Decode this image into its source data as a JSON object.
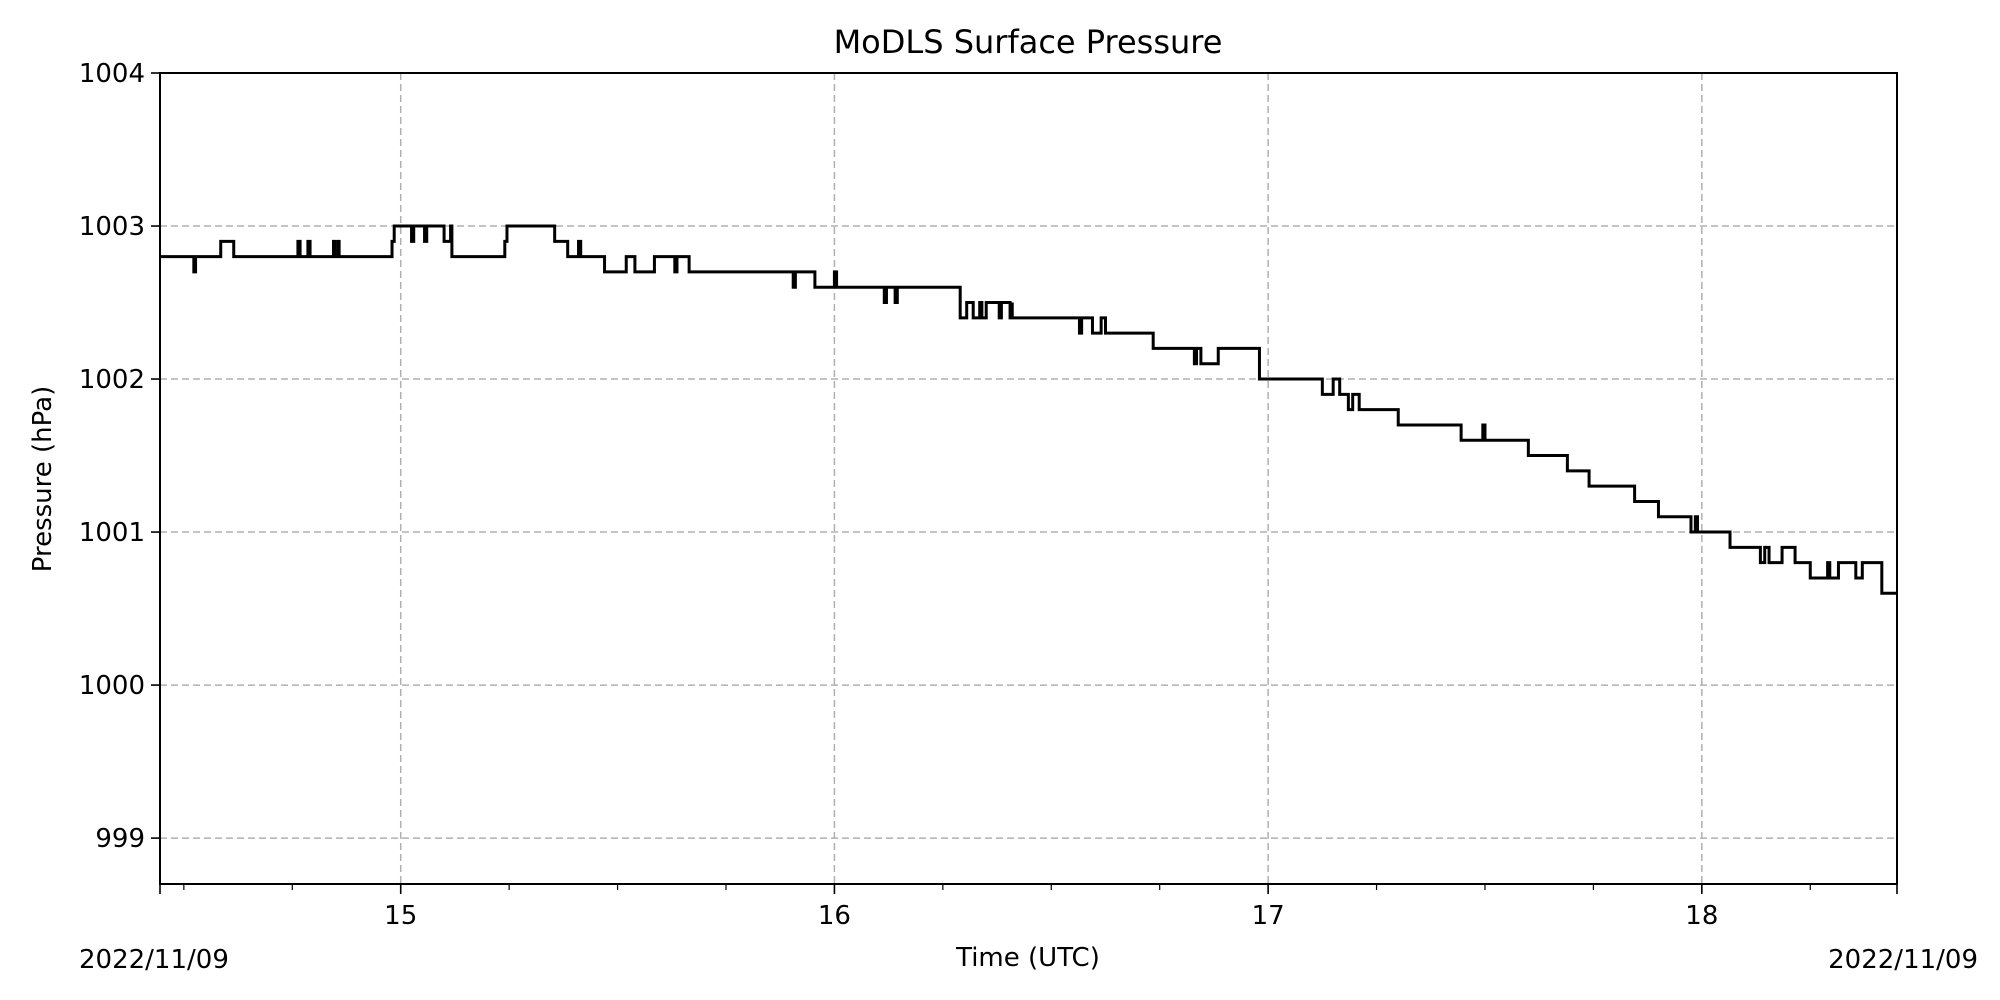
{
  "chart_data": {
    "type": "line",
    "title": "MoDLS Surface Pressure",
    "xlabel": "Time (UTC)",
    "ylabel": "Pressure (hPa)",
    "xlim": [
      14.445,
      18.45
    ],
    "ylim": [
      998.7,
      1004.0
    ],
    "x_ticks": [
      15,
      16,
      17,
      18
    ],
    "x_tick_labels": [
      "15",
      "16",
      "17",
      "18"
    ],
    "y_ticks": [
      999,
      1000,
      1001,
      1002,
      1003,
      1004
    ],
    "y_tick_labels": [
      "999",
      "1000",
      "1001",
      "1002",
      "1003",
      "1004"
    ],
    "date_left": "2022/11/09",
    "date_right": "2022/11/09",
    "grid": true,
    "legend": false,
    "line_color": "#000000",
    "series": [
      {
        "step": "post",
        "x": [
          14.445,
          14.523,
          14.527,
          14.585,
          14.615,
          14.763,
          14.768,
          14.786,
          14.791,
          14.845,
          14.848,
          14.855,
          14.858,
          14.98,
          14.985,
          15.025,
          15.03,
          15.055,
          15.06,
          15.1,
          15.115,
          15.118,
          15.24,
          15.245,
          15.355,
          15.385,
          15.41,
          15.415,
          15.47,
          15.52,
          15.54,
          15.585,
          15.632,
          15.637,
          15.665,
          15.905,
          15.91,
          15.955,
          16.0,
          16.005,
          16.115,
          16.12,
          16.14,
          16.145,
          16.29,
          16.305,
          16.32,
          16.335,
          16.34,
          16.35,
          16.38,
          16.385,
          16.405,
          16.41,
          16.41,
          16.485,
          16.565,
          16.57,
          16.595,
          16.615,
          16.625,
          16.735,
          16.83,
          16.835,
          16.845,
          16.885,
          16.98,
          17.125,
          17.15,
          17.165,
          17.185,
          17.195,
          17.21,
          17.3,
          17.445,
          17.495,
          17.5,
          17.51,
          17.6,
          17.69,
          17.74,
          17.845,
          17.9,
          17.975,
          17.985,
          17.99,
          18.065,
          18.135,
          18.145,
          18.155,
          18.185,
          18.215,
          18.25,
          18.29,
          18.295,
          18.315,
          18.355,
          18.37,
          18.415,
          18.45
        ],
        "values": [
          1002.8,
          1002.7,
          1002.8,
          1002.9,
          1002.8,
          1002.9,
          1002.8,
          1002.9,
          1002.8,
          1002.9,
          1002.8,
          1002.9,
          1002.8,
          1002.9,
          1003.0,
          1002.9,
          1003.0,
          1002.9,
          1003.0,
          1002.9,
          1003.0,
          1002.8,
          1002.9,
          1003.0,
          1002.9,
          1002.8,
          1002.9,
          1002.8,
          1002.7,
          1002.8,
          1002.7,
          1002.8,
          1002.7,
          1002.8,
          1002.7,
          1002.6,
          1002.7,
          1002.6,
          1002.7,
          1002.6,
          1002.5,
          1002.6,
          1002.5,
          1002.6,
          1002.4,
          1002.5,
          1002.4,
          1002.5,
          1002.4,
          1002.5,
          1002.4,
          1002.5,
          1002.4,
          1002.5,
          1002.4,
          1002.4,
          1002.3,
          1002.4,
          1002.3,
          1002.4,
          1002.3,
          1002.2,
          1002.1,
          1002.2,
          1002.1,
          1002.2,
          1002.0,
          1001.9,
          1002.0,
          1001.9,
          1001.8,
          1001.9,
          1001.8,
          1001.7,
          1001.6,
          1001.7,
          1001.6,
          1001.6,
          1001.5,
          1001.4,
          1001.3,
          1001.2,
          1001.1,
          1001.0,
          1001.1,
          1001.0,
          1000.9,
          1000.8,
          1000.9,
          1000.8,
          1000.9,
          1000.8,
          1000.7,
          1000.8,
          1000.7,
          1000.8,
          1000.7,
          1000.8,
          1000.6,
          1000.6
        ]
      }
    ]
  }
}
